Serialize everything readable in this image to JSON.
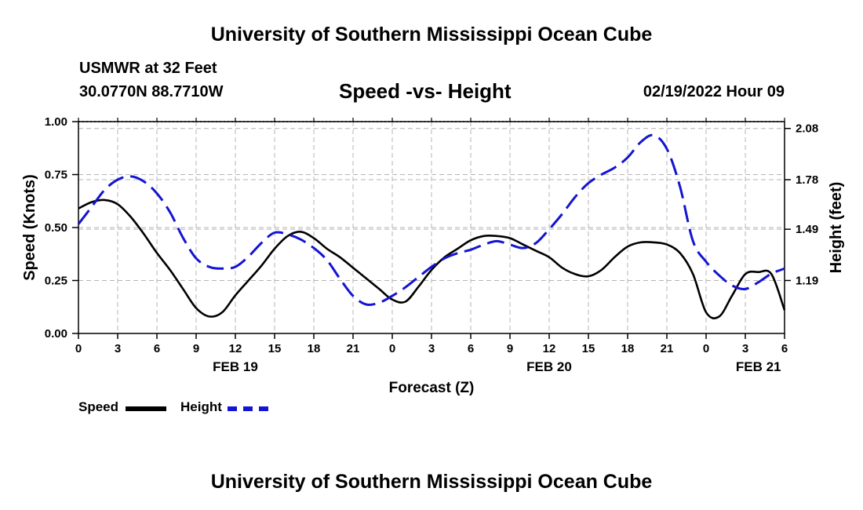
{
  "header": {
    "main_title": "University of Southern Mississippi Ocean Cube",
    "station": "USMWR at 32 Feet",
    "coords": "30.0770N  88.7710W",
    "chart_title": "Speed -vs- Height",
    "datetime": "02/19/2022 Hour 09"
  },
  "footer": {
    "title": "University of Southern Mississippi Ocean Cube"
  },
  "colors": {
    "speed": "#000000",
    "height": "#1414d2",
    "grid": "#b4b4b4"
  },
  "chart_data": {
    "type": "line",
    "title": "Speed -vs- Height",
    "xlabel": "Forecast (Z)",
    "ylabel": "Speed (Knots)",
    "y2label": "Height (feet)",
    "x_range_hours": [
      0,
      54
    ],
    "x_tick_labels": [
      "0",
      "3",
      "6",
      "9",
      "12",
      "15",
      "18",
      "21",
      "0",
      "3",
      "6",
      "9",
      "12",
      "15",
      "18",
      "21",
      "0",
      "3",
      "6"
    ],
    "date_labels": [
      {
        "label": "FEB 19",
        "hour": 12
      },
      {
        "label": "FEB 20",
        "hour": 36
      },
      {
        "label": "FEB 21",
        "hour": 52
      }
    ],
    "ylim": [
      0,
      1
    ],
    "y_ticks": [
      0,
      0.25,
      0.5,
      0.75,
      1
    ],
    "y_tick_labels": [
      "0.00",
      "0.25",
      "0.50",
      "0.75",
      "1.00"
    ],
    "y2lim": [
      0.88,
      2.12
    ],
    "y2_ticks": [
      1.19,
      1.49,
      1.78,
      2.08
    ],
    "y2_tick_labels": [
      "1.19",
      "1.49",
      "1.78",
      "2.08"
    ],
    "grid": true,
    "series": [
      {
        "name": "Speed",
        "axis": "left",
        "style": "solid",
        "x": [
          0,
          1,
          2,
          3,
          4,
          5,
          6,
          7,
          8,
          9,
          10,
          11,
          12,
          13,
          14,
          15,
          16,
          17,
          18,
          19,
          20,
          21,
          22,
          23,
          24,
          25,
          26,
          27,
          28,
          29,
          30,
          31,
          32,
          33,
          34,
          35,
          36,
          37,
          38,
          39,
          40,
          41,
          42,
          43,
          44,
          45,
          46,
          47,
          48,
          49,
          50,
          51,
          52,
          53,
          54
        ],
        "values": [
          0.59,
          0.62,
          0.63,
          0.61,
          0.55,
          0.47,
          0.38,
          0.3,
          0.21,
          0.12,
          0.08,
          0.1,
          0.18,
          0.25,
          0.32,
          0.4,
          0.46,
          0.48,
          0.45,
          0.4,
          0.36,
          0.31,
          0.26,
          0.21,
          0.16,
          0.15,
          0.22,
          0.3,
          0.36,
          0.4,
          0.44,
          0.46,
          0.46,
          0.45,
          0.42,
          0.39,
          0.36,
          0.31,
          0.28,
          0.27,
          0.3,
          0.36,
          0.41,
          0.43,
          0.43,
          0.42,
          0.38,
          0.28,
          0.1,
          0.08,
          0.18,
          0.28,
          0.29,
          0.28,
          0.11
        ]
      },
      {
        "name": "Height",
        "axis": "right",
        "style": "dashed",
        "x": [
          0,
          1,
          2,
          3,
          4,
          5,
          6,
          7,
          8,
          9,
          10,
          11,
          12,
          13,
          14,
          15,
          16,
          17,
          18,
          19,
          20,
          21,
          22,
          23,
          24,
          25,
          26,
          27,
          28,
          29,
          30,
          31,
          32,
          33,
          34,
          35,
          36,
          37,
          38,
          39,
          40,
          41,
          42,
          43,
          44,
          45,
          46,
          47,
          48,
          49,
          50,
          51,
          52,
          53,
          54
        ],
        "values": [
          1.52,
          1.62,
          1.72,
          1.78,
          1.8,
          1.77,
          1.7,
          1.59,
          1.44,
          1.32,
          1.27,
          1.26,
          1.27,
          1.33,
          1.41,
          1.47,
          1.46,
          1.43,
          1.38,
          1.31,
          1.2,
          1.1,
          1.05,
          1.06,
          1.1,
          1.15,
          1.21,
          1.27,
          1.32,
          1.35,
          1.37,
          1.4,
          1.42,
          1.4,
          1.38,
          1.41,
          1.49,
          1.58,
          1.68,
          1.76,
          1.81,
          1.85,
          1.91,
          2.0,
          2.04,
          1.96,
          1.74,
          1.42,
          1.3,
          1.22,
          1.16,
          1.14,
          1.18,
          1.23,
          1.26
        ]
      }
    ]
  },
  "legend": {
    "speed_label": "Speed",
    "height_label": "Height"
  }
}
